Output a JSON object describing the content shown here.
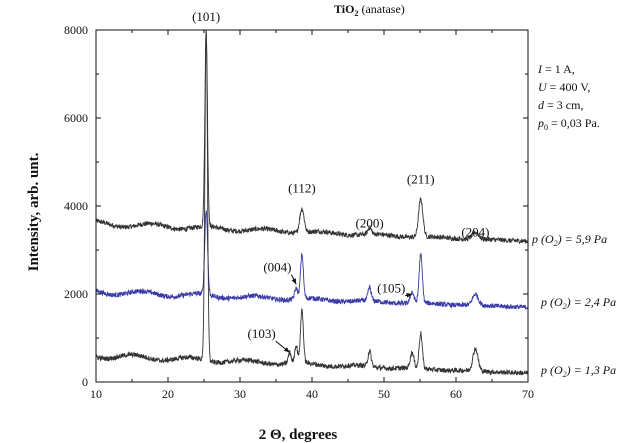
{
  "chart_data": {
    "type": "line",
    "title_main": "TiO",
    "title_sub": "2",
    "title_rest": " (anatase)",
    "xlabel": "2 Θ, degrees",
    "ylabel": "Intensity, arb. unt.",
    "xlim": [
      10,
      70
    ],
    "ylim": [
      0,
      8000
    ],
    "x_ticks": [
      "10",
      "20",
      "30",
      "40",
      "50",
      "60",
      "70"
    ],
    "y_ticks": [
      "0",
      "2000",
      "4000",
      "6000",
      "8000"
    ],
    "grid": false,
    "parameters": [
      {
        "var": "I",
        "text": " = 1 A,"
      },
      {
        "var": "U",
        "text": " = 400 V,"
      },
      {
        "var": "d",
        "text": " = 3 cm,"
      },
      {
        "var": "p",
        "sub": "0",
        "text": " = 0,03 Pa."
      }
    ],
    "series": [
      {
        "name_p": "p (O",
        "name_sub": "2",
        "name_rest": ") = 5,9 Pa",
        "color": "#333333",
        "baseline_start": 3600,
        "baseline_end": 3200,
        "peaks": [
          {
            "x": 25.3,
            "h": 4400,
            "w": 0.18
          },
          {
            "x": 38.6,
            "h": 550,
            "w": 0.3
          },
          {
            "x": 48.0,
            "h": 150,
            "w": 0.25
          },
          {
            "x": 55.1,
            "h": 850,
            "w": 0.3
          },
          {
            "x": 62.7,
            "h": 150,
            "w": 0.45
          }
        ]
      },
      {
        "name_p": "p (O",
        "name_sub": "2",
        "name_rest": ") = 2,4 Pa",
        "color": "#3a3aa8",
        "baseline_start": 2050,
        "baseline_end": 1700,
        "peaks": [
          {
            "x": 25.3,
            "h": 1900,
            "w": 0.2
          },
          {
            "x": 37.8,
            "h": 250,
            "w": 0.22
          },
          {
            "x": 38.6,
            "h": 1000,
            "w": 0.2
          },
          {
            "x": 48.0,
            "h": 300,
            "w": 0.22
          },
          {
            "x": 53.9,
            "h": 250,
            "w": 0.25
          },
          {
            "x": 55.1,
            "h": 1100,
            "w": 0.22
          },
          {
            "x": 62.7,
            "h": 250,
            "w": 0.4
          }
        ]
      },
      {
        "name_p": "p (O",
        "name_sub": "2",
        "name_rest": ") = 1,3 Pa",
        "color": "#333333",
        "baseline_start": 600,
        "baseline_end": 200,
        "peaks": [
          {
            "x": 25.3,
            "h": 7500,
            "w": 0.18
          },
          {
            "x": 36.9,
            "h": 250,
            "w": 0.2
          },
          {
            "x": 37.8,
            "h": 400,
            "w": 0.2
          },
          {
            "x": 38.6,
            "h": 1200,
            "w": 0.2
          },
          {
            "x": 48.0,
            "h": 350,
            "w": 0.22
          },
          {
            "x": 53.9,
            "h": 350,
            "w": 0.25
          },
          {
            "x": 55.1,
            "h": 800,
            "w": 0.22
          },
          {
            "x": 62.7,
            "h": 500,
            "w": 0.35
          }
        ]
      }
    ],
    "annotations": [
      {
        "label": "(101)",
        "x": 25.3,
        "y": 8300
      },
      {
        "label": "(112)",
        "x": 38.6,
        "y": 4400
      },
      {
        "label": "(200)",
        "x": 48.0,
        "y": 3600
      },
      {
        "label": "(211)",
        "x": 55.1,
        "y": 4600
      },
      {
        "label": "(204)",
        "x": 62.7,
        "y": 3400
      },
      {
        "label": "(004)",
        "x": 35.2,
        "y": 2600,
        "arrow_to": [
          37.8,
          2220
        ]
      },
      {
        "label": "(105)",
        "x": 51.0,
        "y": 2120,
        "arrow_to": [
          53.9,
          2000
        ]
      },
      {
        "label": "(103)",
        "x": 33.0,
        "y": 1090,
        "arrow_to": [
          36.9,
          670
        ]
      }
    ]
  }
}
